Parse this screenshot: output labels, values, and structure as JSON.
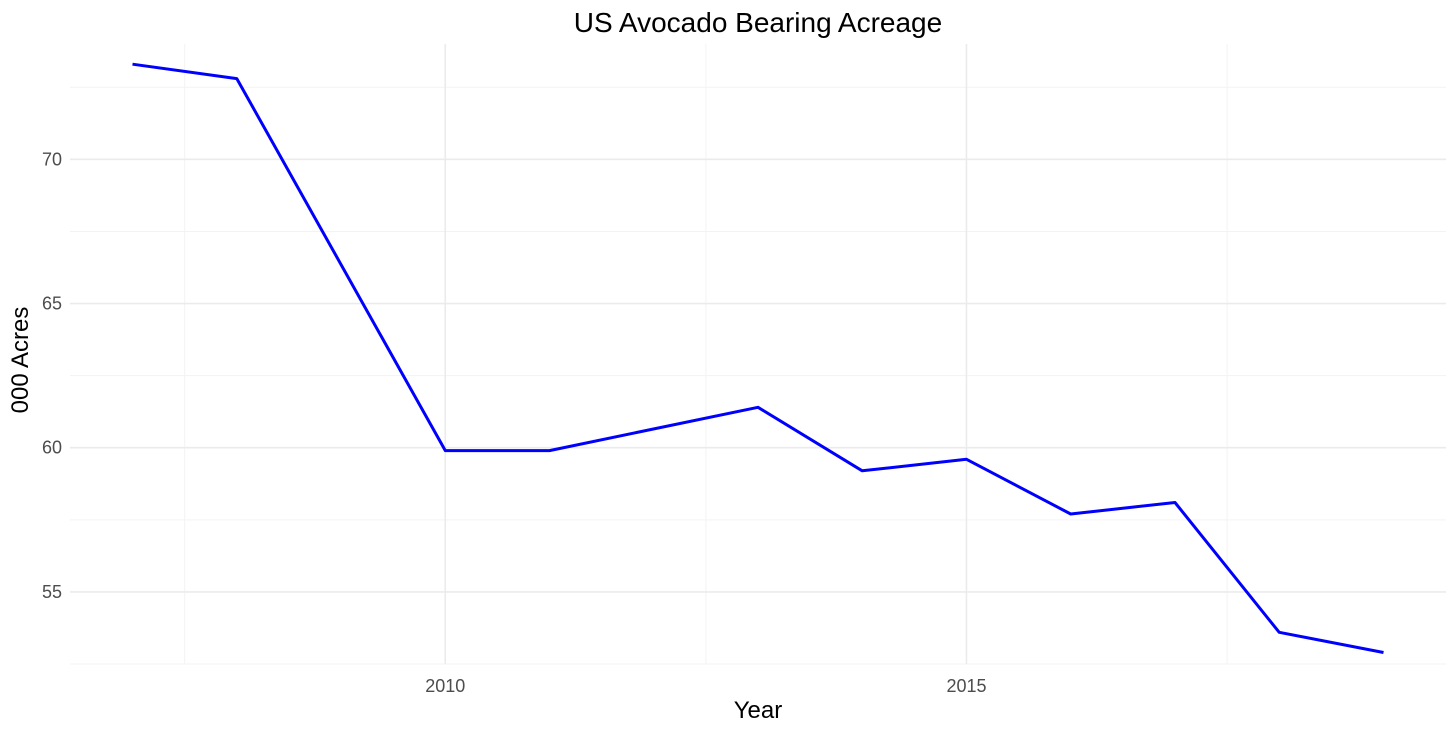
{
  "chart_data": {
    "type": "line",
    "title": "US Avocado Bearing Acreage",
    "xlabel": "Year",
    "ylabel": "000 Acres",
    "xlim": [
      2006.4,
      2019.6
    ],
    "ylim": [
      52.5,
      74
    ],
    "x_ticks": [
      2010,
      2015
    ],
    "y_ticks": [
      55,
      60,
      65,
      70
    ],
    "x_minor_ticks": [
      2007.5,
      2012.5,
      2017.5
    ],
    "y_minor_ticks": [
      52.5,
      57.5,
      62.5,
      67.5,
      72.5
    ],
    "grid": true,
    "line_color": "#0000ff",
    "series": [
      {
        "x": [
          2007,
          2008,
          2010,
          2011,
          2013,
          2014,
          2015,
          2016,
          2017,
          2018,
          2019
        ],
        "y": [
          73.3,
          72.8,
          59.9,
          59.9,
          61.4,
          59.2,
          59.6,
          57.7,
          58.1,
          53.6,
          52.9
        ]
      }
    ]
  }
}
